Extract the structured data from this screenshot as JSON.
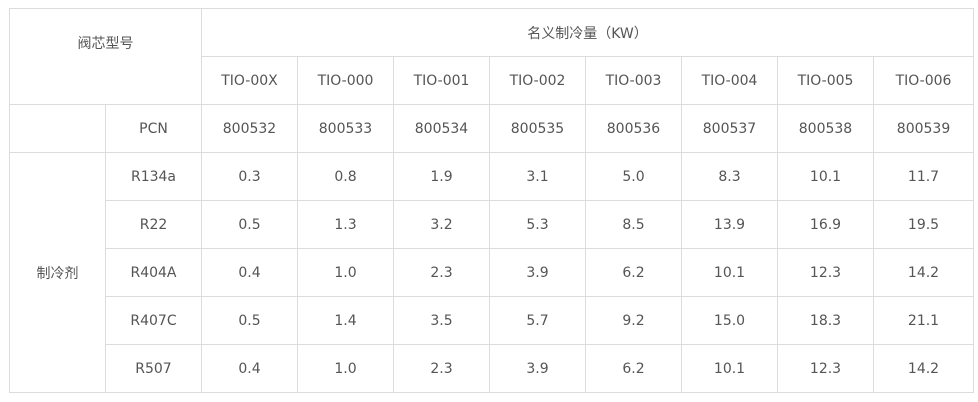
{
  "table": {
    "corner_label": "阀芯型号",
    "group_header": "名义制冷量（KW）",
    "models": [
      "TIO-00X",
      "TIO-000",
      "TIO-001",
      "TIO-002",
      "TIO-003",
      "TIO-004",
      "TIO-005",
      "TIO-006"
    ],
    "pcn_label": "PCN",
    "pcn_values": [
      "800532",
      "800533",
      "800534",
      "800535",
      "800536",
      "800537",
      "800538",
      "800539"
    ],
    "refrigerant_group_label": "制冷剂",
    "refrigerants": [
      {
        "name": "R134a",
        "values": [
          "0.3",
          "0.8",
          "1.9",
          "3.1",
          "5.0",
          "8.3",
          "10.1",
          "11.7"
        ]
      },
      {
        "name": "R22",
        "values": [
          "0.5",
          "1.3",
          "3.2",
          "5.3",
          "8.5",
          "13.9",
          "16.9",
          "19.5"
        ]
      },
      {
        "name": "R404A",
        "values": [
          "0.4",
          "1.0",
          "2.3",
          "3.9",
          "6.2",
          "10.1",
          "12.3",
          "14.2"
        ]
      },
      {
        "name": "R407C",
        "values": [
          "0.5",
          "1.4",
          "3.5",
          "5.7",
          "9.2",
          "15.0",
          "18.3",
          "21.1"
        ]
      },
      {
        "name": "R507",
        "values": [
          "0.4",
          "1.0",
          "2.3",
          "3.9",
          "6.2",
          "10.1",
          "12.3",
          "14.2"
        ]
      }
    ]
  }
}
